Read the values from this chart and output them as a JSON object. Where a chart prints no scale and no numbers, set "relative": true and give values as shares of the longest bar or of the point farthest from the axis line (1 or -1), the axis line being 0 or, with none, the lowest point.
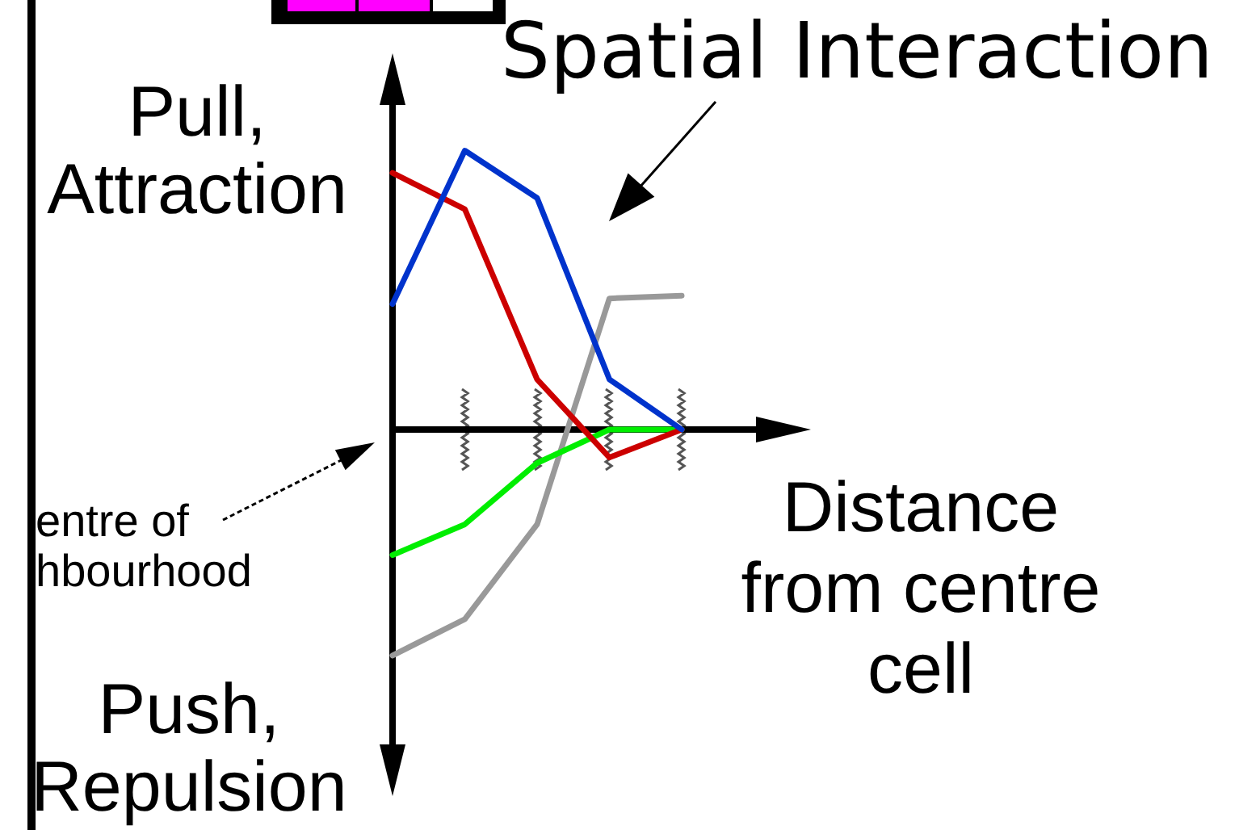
{
  "chart_data": {
    "type": "line",
    "title": "Spatial Interaction",
    "xlabel": "Distance from centre cell",
    "relative": true,
    "categories": [
      null,
      null,
      null,
      null,
      null
    ],
    "series": [
      {
        "color": "#0033cc",
        "values": [
          0.45,
          1,
          0.83,
          0.18,
          0
        ]
      },
      {
        "color": "#cc0000",
        "values": [
          0.92,
          0.79,
          0.18,
          -0.1,
          0
        ]
      },
      {
        "color": "#00ee00",
        "values": [
          -0.45,
          -0.34,
          -0.12,
          0,
          0
        ]
      },
      {
        "color": "#999999",
        "values": [
          -0.81,
          -0.68,
          -0.34,
          0.47,
          0.48
        ]
      }
    ],
    "annotations": [
      "Pull, Attraction",
      "Push, Repulsion",
      "entre of hbourhood"
    ]
  }
}
